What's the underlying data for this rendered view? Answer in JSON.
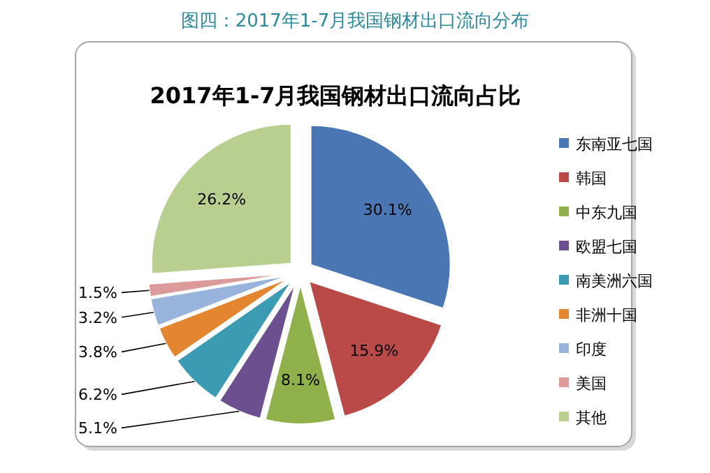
{
  "chart_data": {
    "type": "pie",
    "title": "图四：2017年1-7月我国钢材出口流向分布",
    "subtitle": "2017年1-7月我国钢材出口流向占比",
    "categories": [
      "东南亚七国",
      "韩国",
      "中东九国",
      "欧盟七国",
      "南美洲六国",
      "非洲十国",
      "印度",
      "美国",
      "其他"
    ],
    "values": [
      30.1,
      15.9,
      8.1,
      5.1,
      6.2,
      3.8,
      3.2,
      1.5,
      26.2
    ],
    "colors": [
      "#4a77b4",
      "#b94a48",
      "#8fb04a",
      "#6b4f8f",
      "#3a9bb3",
      "#e4862f",
      "#98b3dc",
      "#dd9a9a",
      "#b9cf8f"
    ],
    "value_labels": [
      "30.1%",
      "15.9%",
      "8.1%",
      "5.1%",
      "6.2%",
      "3.8%",
      "3.2%",
      "1.5%",
      "26.2%"
    ],
    "legend": "right"
  }
}
